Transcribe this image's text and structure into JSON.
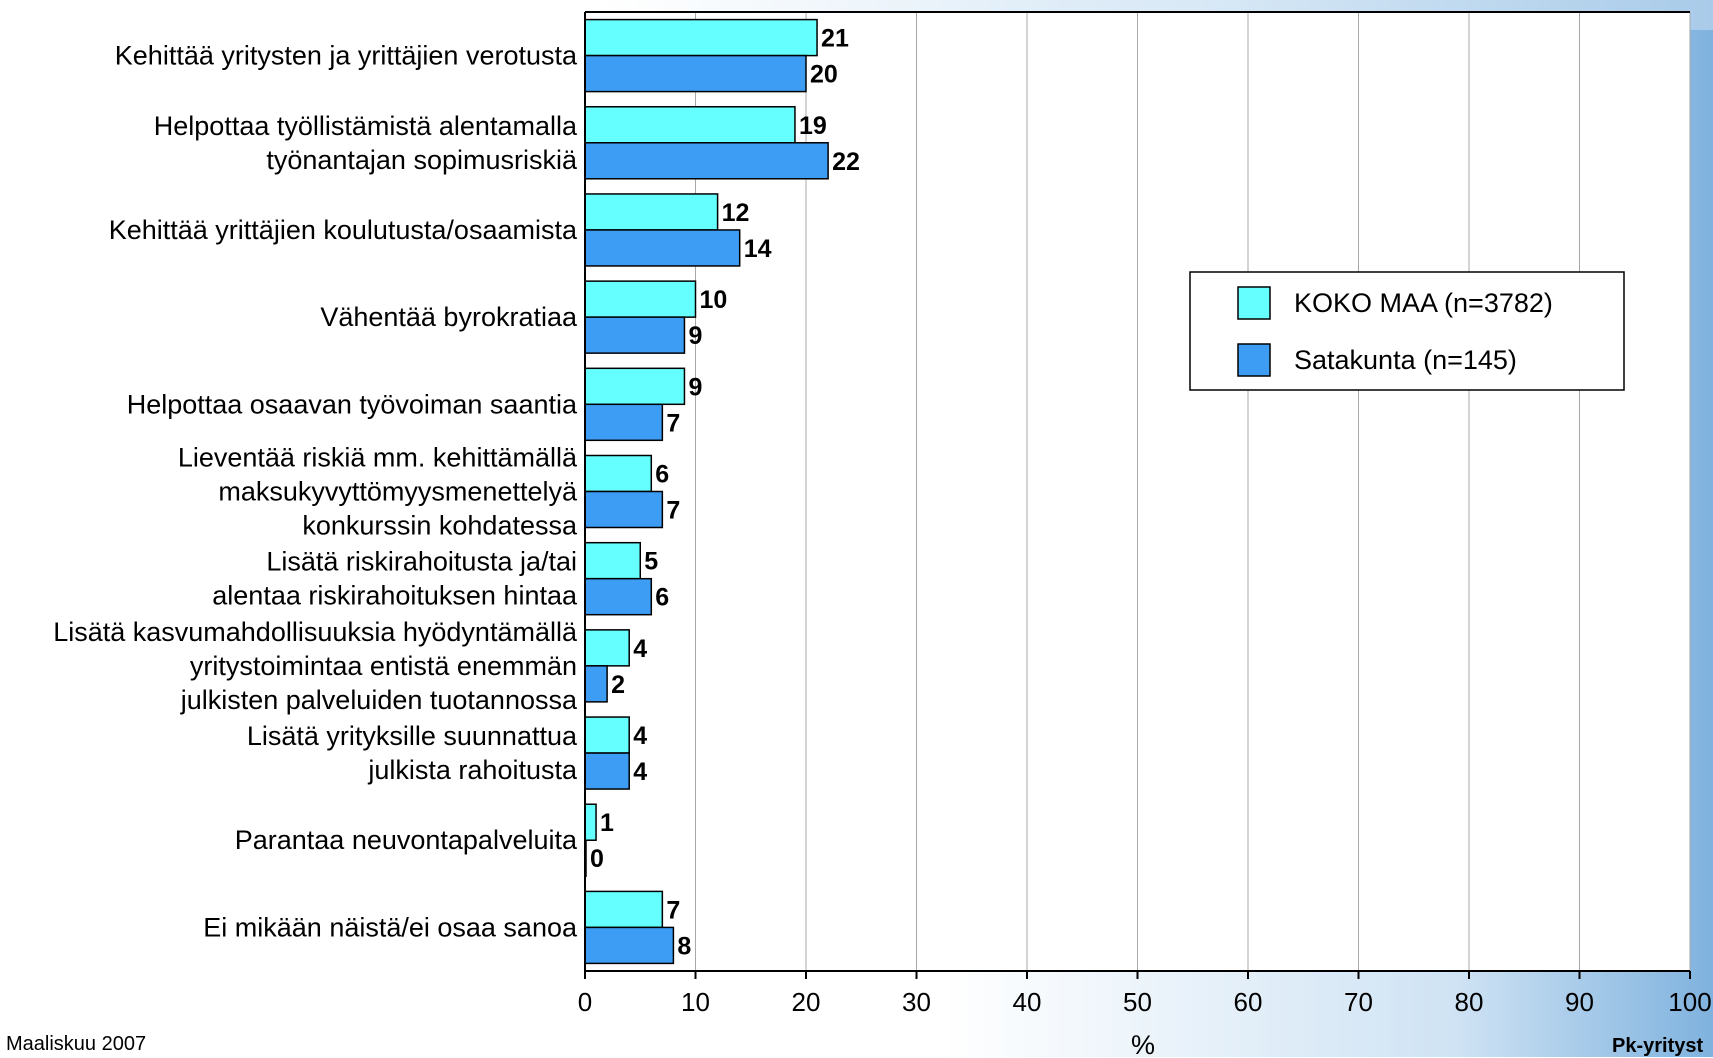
{
  "chart_data": {
    "type": "bar",
    "orientation": "horizontal",
    "categories": [
      [
        "Kehittää yritysten ja yrittäjien verotusta"
      ],
      [
        "Helpottaa työllistämistä alentamalla",
        "työnantajan sopimusriskiä"
      ],
      [
        "Kehittää yrittäjien koulutusta/osaamista"
      ],
      [
        "Vähentää byrokratiaa"
      ],
      [
        "Helpottaa osaavan työvoiman saantia"
      ],
      [
        "Lieventää riskiä mm. kehittämällä",
        "maksukyvyttömyysmenettelyä",
        "konkurssin kohdatessa"
      ],
      [
        "Lisätä riskirahoitusta ja/tai",
        "alentaa riskirahoituksen hintaa"
      ],
      [
        "Lisätä kasvumahdollisuuksia hyödyntämällä",
        "yritystoimintaa entistä enemmän",
        "julkisten palveluiden tuotannossa"
      ],
      [
        "Lisätä yrityksille suunnattua",
        "julkista rahoitusta"
      ],
      [
        "Parantaa neuvontapalveluita"
      ],
      [
        "Ei mikään näistä/ei osaa sanoa"
      ]
    ],
    "series": [
      {
        "name": "KOKO MAA (n=3782)",
        "color": "#66ffff",
        "values": [
          21,
          19,
          12,
          10,
          9,
          6,
          5,
          4,
          4,
          1,
          7
        ]
      },
      {
        "name": "Satakunta (n=145)",
        "color": "#3d9df5",
        "values": [
          20,
          22,
          14,
          9,
          7,
          7,
          6,
          2,
          4,
          0,
          8
        ]
      }
    ],
    "x_ticks": [
      "0",
      "10",
      "20",
      "30",
      "40",
      "50",
      "60",
      "70",
      "80",
      "90",
      "100"
    ],
    "xlim": [
      0,
      100
    ],
    "xlabel": "%",
    "grid": "vertical",
    "legend_position": "right"
  },
  "footer": {
    "left": "Maaliskuu 2007",
    "right": "Pk-yrityst"
  }
}
